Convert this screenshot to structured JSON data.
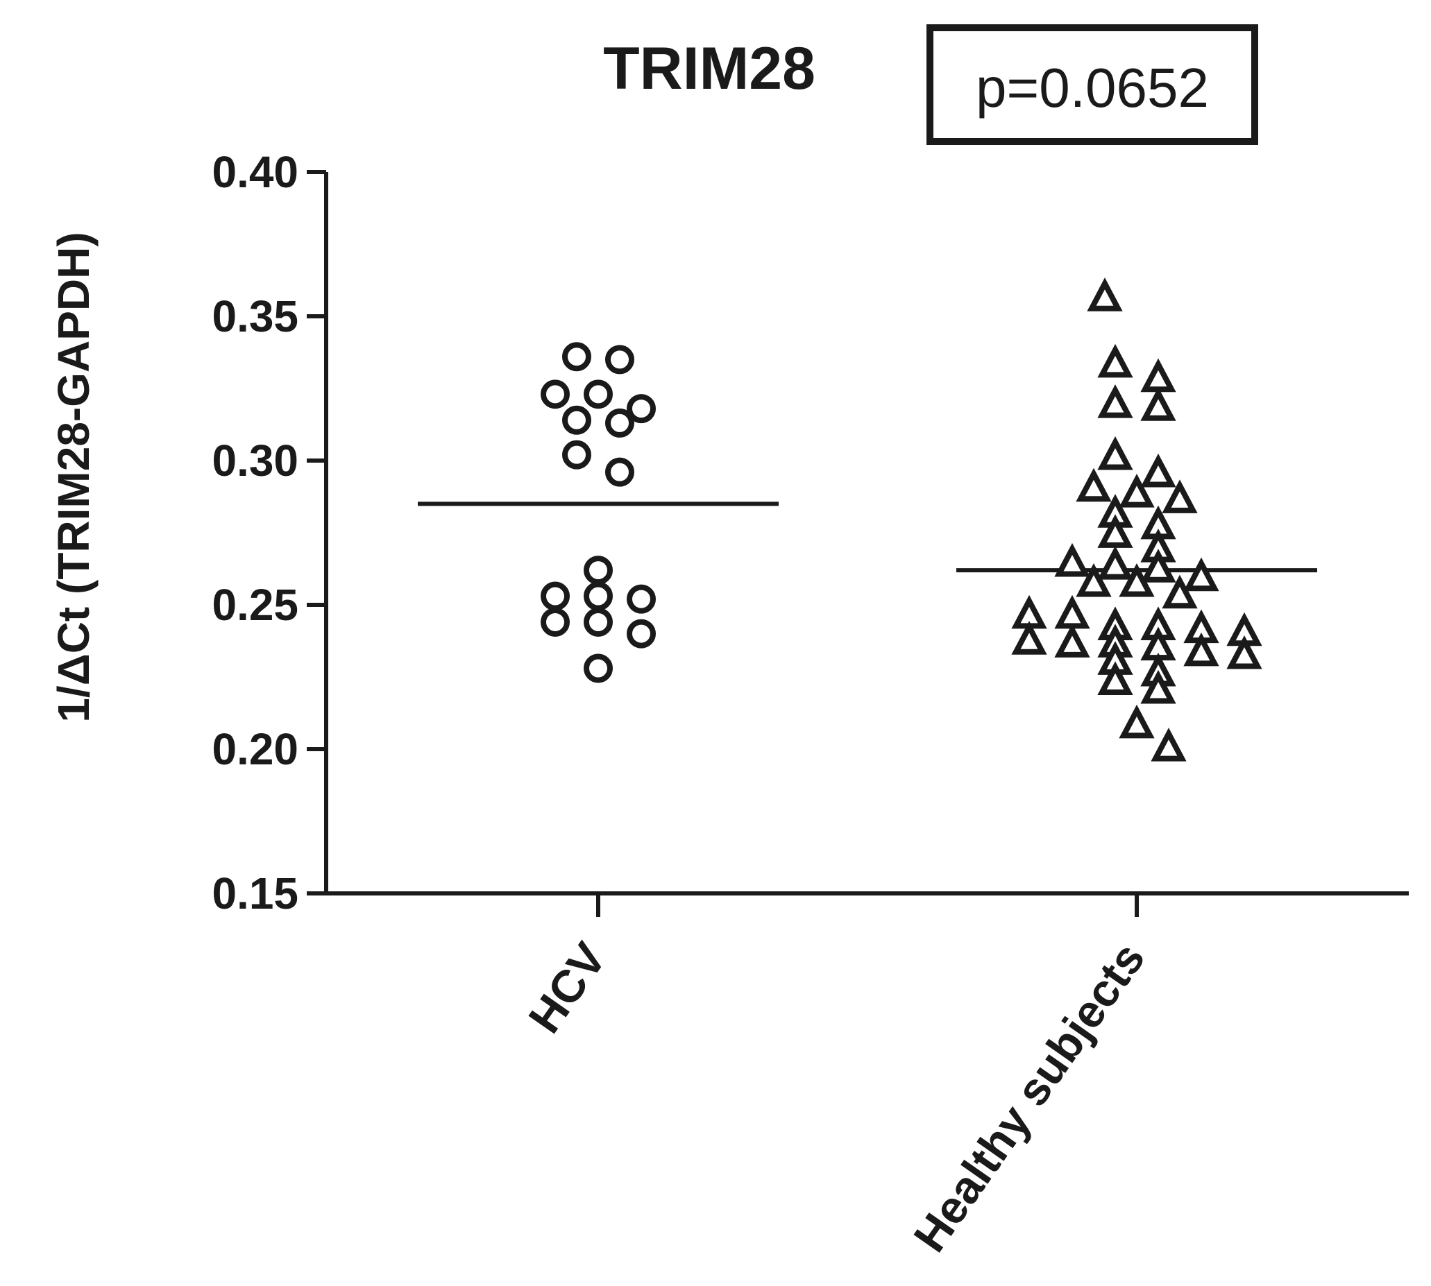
{
  "chart_data": {
    "type": "scatter",
    "title": "TRIM28",
    "annotation": "p=0.0652",
    "xlabel": "",
    "ylabel": "1/ΔCt (TRIM28-GAPDH)",
    "ylim": [
      0.15,
      0.4
    ],
    "yticks": [
      "0.40",
      "0.35",
      "0.30",
      "0.25",
      "0.20",
      "0.15"
    ],
    "ytick_values": [
      0.4,
      0.35,
      0.3,
      0.25,
      0.2,
      0.15
    ],
    "grid": false,
    "categories": [
      "HCV",
      "Healthy subjects"
    ],
    "series": [
      {
        "category": "HCV",
        "marker": "circle",
        "mean": 0.285,
        "values": [
          0.336,
          0.335,
          0.323,
          0.323,
          0.318,
          0.313,
          0.314,
          0.302,
          0.296,
          0.262,
          0.253,
          0.252,
          0.253,
          0.244,
          0.244,
          0.24,
          0.228
        ]
      },
      {
        "category": "Healthy subjects",
        "marker": "triangle",
        "mean": 0.262,
        "values": [
          0.356,
          0.333,
          0.328,
          0.318,
          0.319,
          0.301,
          0.295,
          0.288,
          0.29,
          0.281,
          0.286,
          0.277,
          0.274,
          0.269,
          0.264,
          0.263,
          0.259,
          0.257,
          0.257,
          0.262,
          0.253,
          0.246,
          0.246,
          0.242,
          0.24,
          0.242,
          0.237,
          0.236,
          0.235,
          0.236,
          0.241,
          0.233,
          0.23,
          0.232,
          0.223,
          0.226,
          0.22,
          0.208,
          0.2
        ]
      }
    ]
  }
}
